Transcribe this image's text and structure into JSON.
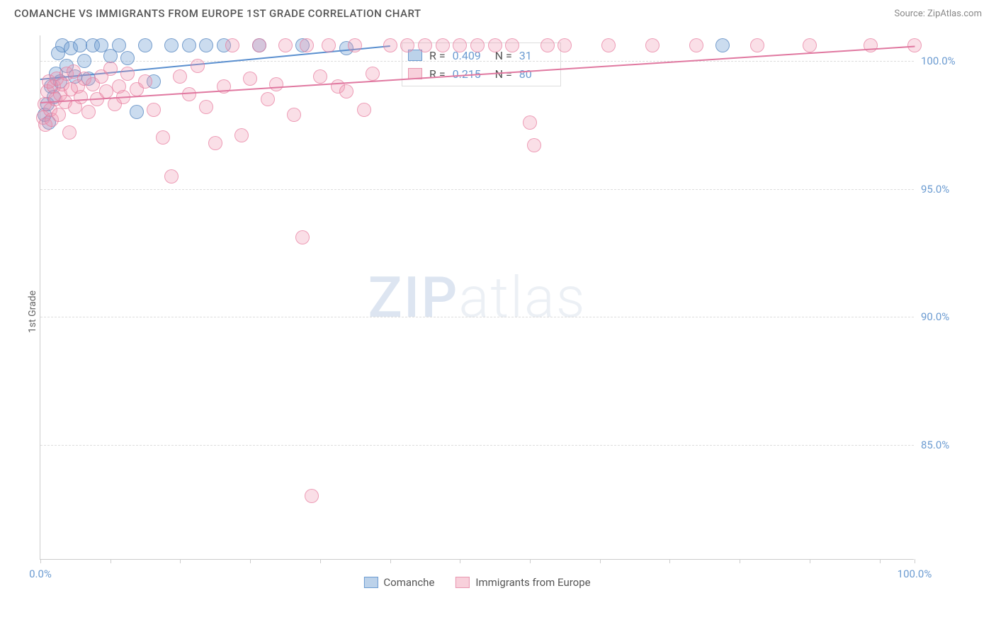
{
  "title": "COMANCHE VS IMMIGRANTS FROM EUROPE 1ST GRADE CORRELATION CHART",
  "source": "Source: ZipAtlas.com",
  "y_axis_label": "1st Grade",
  "watermark_a": "ZIP",
  "watermark_b": "atlas",
  "chart": {
    "type": "scatter",
    "xlim": [
      0,
      100
    ],
    "ylim": [
      80.5,
      101
    ],
    "x_ticks": [
      0,
      8,
      16,
      24,
      32,
      40,
      48,
      56,
      64,
      72,
      80,
      88,
      96,
      100
    ],
    "x_tick_labels": {
      "0": "0.0%",
      "100": "100.0%"
    },
    "y_ticks": [
      85,
      90,
      95,
      100
    ],
    "y_tick_labels": {
      "85": "85.0%",
      "90": "90.0%",
      "95": "95.0%",
      "100": "100.0%"
    },
    "marker_radius": 10,
    "background_color": "#ffffff",
    "grid_color": "#dddddd",
    "axis_color": "#cccccc",
    "tick_label_color": "#6b9bd1",
    "tick_label_fontsize": 15,
    "series": [
      {
        "name": "Comanche",
        "color_fill": "rgba(107,155,209,0.35)",
        "color_stroke": "rgba(80,130,190,0.7)",
        "color_hex": "#6b9bd1",
        "R": "0.409",
        "N": "31",
        "trend": {
          "x1": 0,
          "y1": 99.3,
          "x2": 40,
          "y2": 100.6
        },
        "points": [
          [
            0.5,
            97.9
          ],
          [
            0.8,
            98.3
          ],
          [
            1.0,
            97.6
          ],
          [
            1.2,
            99.0
          ],
          [
            1.5,
            98.6
          ],
          [
            1.8,
            99.5
          ],
          [
            2.0,
            100.3
          ],
          [
            2.3,
            99.2
          ],
          [
            2.5,
            100.6
          ],
          [
            3.0,
            99.8
          ],
          [
            3.5,
            100.5
          ],
          [
            4.0,
            99.4
          ],
          [
            4.5,
            100.6
          ],
          [
            5.0,
            100.0
          ],
          [
            5.5,
            99.3
          ],
          [
            6.0,
            100.6
          ],
          [
            7.0,
            100.6
          ],
          [
            8.0,
            100.2
          ],
          [
            9.0,
            100.6
          ],
          [
            10.0,
            100.1
          ],
          [
            11.0,
            98.0
          ],
          [
            12.0,
            100.6
          ],
          [
            13.0,
            99.2
          ],
          [
            15.0,
            100.6
          ],
          [
            17.0,
            100.6
          ],
          [
            19.0,
            100.6
          ],
          [
            21.0,
            100.6
          ],
          [
            25.0,
            100.6
          ],
          [
            30.0,
            100.6
          ],
          [
            35.0,
            100.5
          ],
          [
            78.0,
            100.6
          ]
        ]
      },
      {
        "name": "Immigrants from Europe",
        "color_fill": "rgba(240,150,175,0.3)",
        "color_stroke": "rgba(230,120,155,0.65)",
        "color_hex": "#e896b0",
        "R": "0.215",
        "N": "80",
        "trend": {
          "x1": 0,
          "y1": 98.4,
          "x2": 100,
          "y2": 100.6
        },
        "points": [
          [
            0.3,
            97.8
          ],
          [
            0.5,
            98.3
          ],
          [
            0.6,
            97.5
          ],
          [
            0.8,
            98.8
          ],
          [
            1.0,
            99.2
          ],
          [
            1.1,
            98.1
          ],
          [
            1.3,
            97.7
          ],
          [
            1.5,
            99.0
          ],
          [
            1.7,
            98.5
          ],
          [
            1.9,
            99.3
          ],
          [
            2.1,
            97.9
          ],
          [
            2.3,
            98.7
          ],
          [
            2.5,
            99.1
          ],
          [
            2.8,
            98.4
          ],
          [
            3.0,
            99.5
          ],
          [
            3.3,
            97.2
          ],
          [
            3.5,
            98.9
          ],
          [
            3.8,
            99.6
          ],
          [
            4.0,
            98.2
          ],
          [
            4.3,
            99.0
          ],
          [
            4.6,
            98.6
          ],
          [
            5.0,
            99.3
          ],
          [
            5.5,
            98.0
          ],
          [
            6.0,
            99.1
          ],
          [
            6.5,
            98.5
          ],
          [
            7.0,
            99.4
          ],
          [
            7.5,
            98.8
          ],
          [
            8.0,
            99.7
          ],
          [
            8.5,
            98.3
          ],
          [
            9.0,
            99.0
          ],
          [
            9.5,
            98.6
          ],
          [
            10.0,
            99.5
          ],
          [
            11.0,
            98.9
          ],
          [
            12.0,
            99.2
          ],
          [
            13.0,
            98.1
          ],
          [
            14.0,
            97.0
          ],
          [
            15.0,
            95.5
          ],
          [
            16.0,
            99.4
          ],
          [
            17.0,
            98.7
          ],
          [
            18.0,
            99.8
          ],
          [
            19.0,
            98.2
          ],
          [
            20.0,
            96.8
          ],
          [
            21.0,
            99.0
          ],
          [
            22.0,
            100.6
          ],
          [
            23.0,
            97.1
          ],
          [
            24.0,
            99.3
          ],
          [
            25.0,
            100.6
          ],
          [
            26.0,
            98.5
          ],
          [
            27.0,
            99.1
          ],
          [
            28.0,
            100.6
          ],
          [
            29.0,
            97.9
          ],
          [
            30.0,
            93.1
          ],
          [
            30.5,
            100.6
          ],
          [
            31.0,
            83.0
          ],
          [
            32.0,
            99.4
          ],
          [
            33.0,
            100.6
          ],
          [
            34.0,
            99.0
          ],
          [
            35.0,
            98.8
          ],
          [
            36.0,
            100.6
          ],
          [
            37.0,
            98.1
          ],
          [
            38.0,
            99.5
          ],
          [
            40.0,
            100.6
          ],
          [
            42.0,
            100.6
          ],
          [
            44.0,
            100.6
          ],
          [
            46.0,
            100.6
          ],
          [
            48.0,
            100.6
          ],
          [
            50.0,
            100.6
          ],
          [
            52.0,
            100.6
          ],
          [
            54.0,
            100.6
          ],
          [
            56.0,
            97.6
          ],
          [
            56.5,
            96.7
          ],
          [
            58.0,
            100.6
          ],
          [
            60.0,
            100.6
          ],
          [
            65.0,
            100.6
          ],
          [
            70.0,
            100.6
          ],
          [
            75.0,
            100.6
          ],
          [
            82.0,
            100.6
          ],
          [
            88.0,
            100.6
          ],
          [
            95.0,
            100.6
          ],
          [
            100.0,
            100.6
          ]
        ]
      }
    ]
  },
  "stats_box": {
    "rows": [
      {
        "swatch": "blue",
        "r_label": "R =",
        "r_val": "0.409",
        "n_label": "N =",
        "n_val": " 31"
      },
      {
        "swatch": "pink",
        "r_label": "R =",
        "r_val": " 0.215",
        "n_label": "N =",
        "n_val": "80"
      }
    ]
  },
  "bottom_legend": [
    {
      "swatch": "blue",
      "label": "Comanche"
    },
    {
      "swatch": "pink",
      "label": "Immigrants from Europe"
    }
  ]
}
